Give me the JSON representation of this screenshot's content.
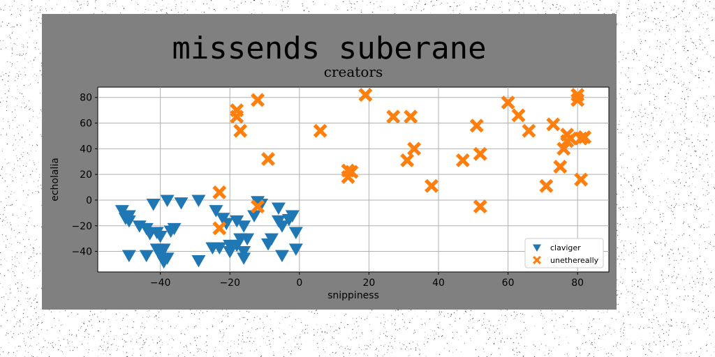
{
  "figure": {
    "suptitle": "missends suberane",
    "background_color": "#808080"
  },
  "chart_data": {
    "type": "scatter",
    "title": "creators",
    "xlabel": "snippiness",
    "ylabel": "echolalia",
    "xlim": [
      -58,
      89
    ],
    "ylim": [
      -56,
      88
    ],
    "xticks": [
      -40,
      -20,
      0,
      20,
      40,
      60,
      80
    ],
    "yticks": [
      -40,
      -20,
      0,
      20,
      40,
      60,
      80
    ],
    "grid": true,
    "legend_position": "lower-right",
    "series": [
      {
        "name": "claviger",
        "marker": "triangle-down",
        "color": "#1f77b4",
        "points": [
          [
            -51,
            -8
          ],
          [
            -50,
            -12
          ],
          [
            -50,
            -14
          ],
          [
            -49,
            -16
          ],
          [
            -49,
            -12
          ],
          [
            -46,
            -20
          ],
          [
            -44,
            -22
          ],
          [
            -43,
            -26
          ],
          [
            -41,
            -25
          ],
          [
            -40,
            -28
          ],
          [
            -44,
            -43
          ],
          [
            -49,
            -43
          ],
          [
            -41,
            -38
          ],
          [
            -39,
            -38
          ],
          [
            -40,
            -43
          ],
          [
            -38,
            -45
          ],
          [
            -39,
            -48
          ],
          [
            -37,
            -24
          ],
          [
            -36,
            -22
          ],
          [
            -42,
            -3
          ],
          [
            -38,
            0
          ],
          [
            -34,
            -2
          ],
          [
            -29,
            0
          ],
          [
            -29,
            -47
          ],
          [
            -25,
            -37
          ],
          [
            -24,
            -8
          ],
          [
            -22,
            -14
          ],
          [
            -21,
            -18
          ],
          [
            -23,
            -37
          ],
          [
            -20,
            -35
          ],
          [
            -20,
            -40
          ],
          [
            -18,
            -16
          ],
          [
            -18,
            -35
          ],
          [
            -17,
            -30
          ],
          [
            -16,
            -40
          ],
          [
            -16,
            -20
          ],
          [
            -16,
            -45
          ],
          [
            -15,
            -30
          ],
          [
            -13,
            -12
          ],
          [
            -12,
            -1
          ],
          [
            -11,
            -3
          ],
          [
            -9,
            -34
          ],
          [
            -8,
            -30
          ],
          [
            -6,
            -6
          ],
          [
            -6,
            -16
          ],
          [
            -5,
            -43
          ],
          [
            -5,
            -20
          ],
          [
            -3,
            -15
          ],
          [
            -2,
            -12
          ],
          [
            -1,
            -25
          ],
          [
            -1,
            -38
          ]
        ]
      },
      {
        "name": "unethereally",
        "marker": "x-filled",
        "color": "#ff7f0e",
        "points": [
          [
            -23,
            6
          ],
          [
            -23,
            -22
          ],
          [
            -18,
            70
          ],
          [
            -18,
            65
          ],
          [
            -17,
            54
          ],
          [
            -12,
            78
          ],
          [
            -12,
            -5
          ],
          [
            -9,
            32
          ],
          [
            6,
            54
          ],
          [
            14,
            23
          ],
          [
            14,
            18
          ],
          [
            15,
            22
          ],
          [
            19,
            82
          ],
          [
            27,
            65
          ],
          [
            31,
            31
          ],
          [
            32,
            65
          ],
          [
            33,
            40
          ],
          [
            38,
            11
          ],
          [
            47,
            31
          ],
          [
            51,
            58
          ],
          [
            52,
            36
          ],
          [
            52,
            -5
          ],
          [
            60,
            76
          ],
          [
            63,
            66
          ],
          [
            66,
            54
          ],
          [
            71,
            11
          ],
          [
            73,
            59
          ],
          [
            75,
            26
          ],
          [
            76,
            40
          ],
          [
            77,
            46
          ],
          [
            77,
            51
          ],
          [
            78,
            48
          ],
          [
            80,
            82
          ],
          [
            80,
            78
          ],
          [
            81,
            48
          ],
          [
            81,
            16
          ],
          [
            82,
            49
          ]
        ]
      }
    ]
  }
}
